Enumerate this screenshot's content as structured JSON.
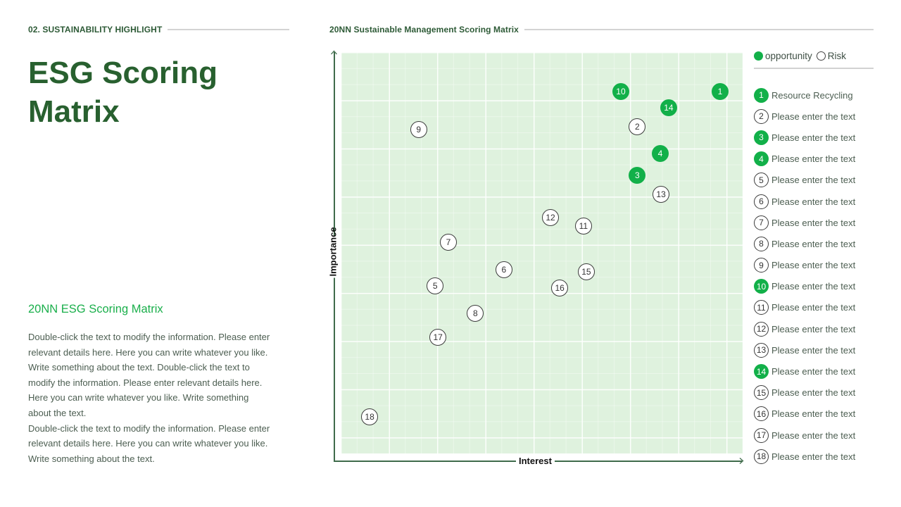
{
  "header_left": {
    "label": "02. SUSTAINABILITY HIGHLIGHT"
  },
  "title": {
    "line1": "ESG Scoring",
    "line2": "Matrix"
  },
  "subtitle": "20NN ESG Scoring Matrix",
  "body": {
    "paragraph1": "Double-click the text to modify the information. Please enter relevant details here. Here you can write whatever you like. Write something about the text. Double-click the text to modify the information. Please enter relevant details here. Here you can write whatever you like. Write something about the text.",
    "paragraph2": "Double-click the text to modify the information. Please enter relevant details here. Here you can write whatever you like. Write something about the text."
  },
  "header_right": {
    "label": "20NN Sustainable Management Scoring Matrix"
  },
  "legend": {
    "opportunity_label": "opportunity",
    "risk_label": "Risk",
    "items": [
      {
        "num": "1",
        "type": "opportunity",
        "text": "Resource Recycling"
      },
      {
        "num": "2",
        "type": "risk",
        "text": "Please enter the text"
      },
      {
        "num": "3",
        "type": "opportunity",
        "text": "Please enter the text"
      },
      {
        "num": "4",
        "type": "opportunity",
        "text": "Please enter the text"
      },
      {
        "num": "5",
        "type": "risk",
        "text": "Please enter the text"
      },
      {
        "num": "6",
        "type": "risk",
        "text": "Please enter the text"
      },
      {
        "num": "7",
        "type": "risk",
        "text": "Please enter the text"
      },
      {
        "num": "8",
        "type": "risk",
        "text": "Please enter the text"
      },
      {
        "num": "9",
        "type": "risk",
        "text": "Please enter the text"
      },
      {
        "num": "10",
        "type": "opportunity",
        "text": "Please enter the text"
      },
      {
        "num": "11",
        "type": "risk",
        "text": "Please enter the text"
      },
      {
        "num": "12",
        "type": "risk",
        "text": "Please enter the text"
      },
      {
        "num": "13",
        "type": "risk",
        "text": "Please enter the text"
      },
      {
        "num": "14",
        "type": "opportunity",
        "text": "Please enter the text"
      },
      {
        "num": "15",
        "type": "risk",
        "text": "Please enter the text"
      },
      {
        "num": "16",
        "type": "risk",
        "text": "Please enter the text"
      },
      {
        "num": "17",
        "type": "risk",
        "text": "Please enter the text"
      },
      {
        "num": "18",
        "type": "risk",
        "text": "Please enter the text"
      }
    ]
  },
  "colors": {
    "opportunity": "#12b049",
    "risk_fill": "#ffffff",
    "grid_bg": "#dff2de",
    "title": "#28602f",
    "accent": "#1aaf4b"
  },
  "chart_data": {
    "type": "scatter",
    "title": "20NN Sustainable Management Scoring Matrix",
    "xlabel": "Interest",
    "ylabel": "Importance",
    "xlim": [
      0,
      100
    ],
    "ylim": [
      0,
      100
    ],
    "grid": true,
    "legend_position": "right",
    "series": [
      {
        "name": "opportunity",
        "points": [
          {
            "id": "1",
            "x": 94.4,
            "y": 90.2
          },
          {
            "id": "3",
            "x": 73.8,
            "y": 69.3
          },
          {
            "id": "4",
            "x": 79.5,
            "y": 74.7
          },
          {
            "id": "10",
            "x": 69.7,
            "y": 90.2
          },
          {
            "id": "14",
            "x": 81.6,
            "y": 86.1
          }
        ]
      },
      {
        "name": "Risk",
        "points": [
          {
            "id": "2",
            "x": 73.8,
            "y": 81.4
          },
          {
            "id": "5",
            "x": 23.5,
            "y": 41.8
          },
          {
            "id": "6",
            "x": 40.6,
            "y": 45.8
          },
          {
            "id": "7",
            "x": 26.8,
            "y": 52.6
          },
          {
            "id": "8",
            "x": 33.5,
            "y": 34.9
          },
          {
            "id": "9",
            "x": 19.4,
            "y": 80.7
          },
          {
            "id": "11",
            "x": 60.4,
            "y": 56.7
          },
          {
            "id": "12",
            "x": 52.2,
            "y": 58.8
          },
          {
            "id": "13",
            "x": 79.7,
            "y": 64.6
          },
          {
            "id": "15",
            "x": 61.1,
            "y": 45.3
          },
          {
            "id": "16",
            "x": 54.5,
            "y": 41.2
          },
          {
            "id": "17",
            "x": 24.2,
            "y": 28.9
          },
          {
            "id": "18",
            "x": 7.2,
            "y": 9.1
          }
        ]
      }
    ]
  }
}
